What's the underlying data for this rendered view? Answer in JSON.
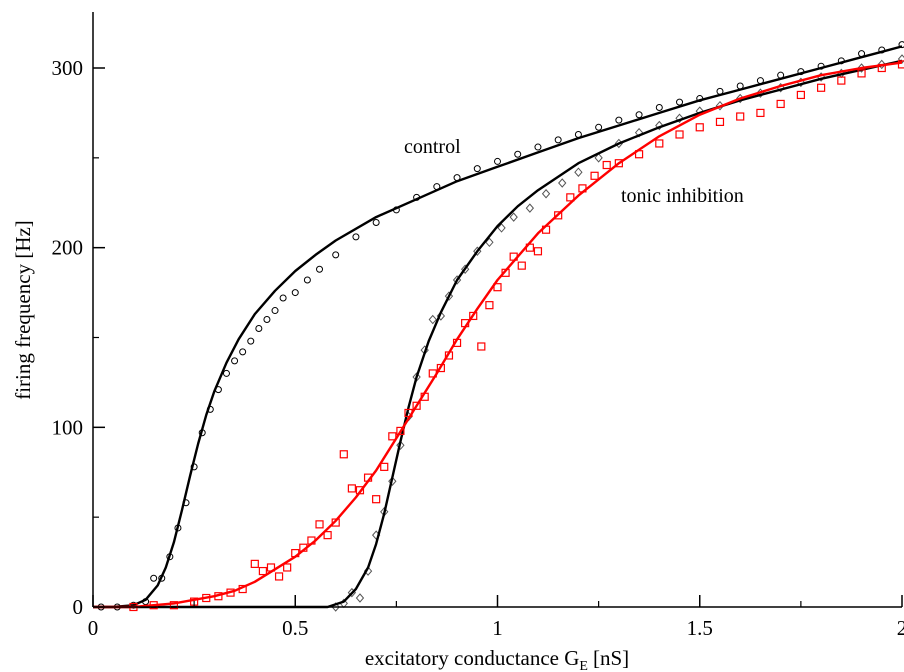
{
  "chart_data": {
    "type": "line",
    "title": "",
    "xlabel": "excitatory conductance G",
    "xlabel_sub": "E",
    "xlabel_unit": "[nS]",
    "ylabel": "firing frequency [Hz]",
    "xlim": [
      0,
      2
    ],
    "ylim": [
      0,
      330
    ],
    "xticks": [
      0,
      0.5,
      1,
      1.5,
      2
    ],
    "xtick_labels": [
      "0",
      "0.5",
      "1",
      "1.5",
      "2"
    ],
    "yticks": [
      0,
      100,
      200,
      300
    ],
    "ytick_labels": [
      "0",
      "100",
      "200",
      "300"
    ],
    "grid": false,
    "legend": "none",
    "annotations": [
      {
        "text": "control",
        "x": 0.76,
        "y": 252
      },
      {
        "text": "tonic inhibition",
        "x": 1.3,
        "y": 218
      }
    ],
    "series": [
      {
        "color": "#000000",
        "marker": "circle",
        "fit_x": [
          0,
          0.05,
          0.1,
          0.13,
          0.16,
          0.18,
          0.2,
          0.22,
          0.24,
          0.26,
          0.28,
          0.3,
          0.33,
          0.36,
          0.4,
          0.45,
          0.5,
          0.55,
          0.6,
          0.7,
          0.8,
          0.9,
          1.0,
          1.1,
          1.2,
          1.3,
          1.4,
          1.5,
          1.6,
          1.7,
          1.8,
          1.9,
          2.0
        ],
        "fit_y": [
          0,
          0,
          1,
          4,
          12,
          22,
          36,
          54,
          73,
          91,
          107,
          120,
          136,
          149,
          163,
          176,
          187,
          196,
          204,
          217,
          227,
          237,
          245,
          253,
          261,
          268,
          275,
          282,
          288,
          294,
          300,
          306,
          312
        ],
        "points_x": [
          0.02,
          0.06,
          0.1,
          0.13,
          0.15,
          0.17,
          0.19,
          0.21,
          0.23,
          0.25,
          0.27,
          0.29,
          0.31,
          0.33,
          0.35,
          0.37,
          0.39,
          0.41,
          0.43,
          0.45,
          0.47,
          0.5,
          0.53,
          0.56,
          0.6,
          0.65,
          0.7,
          0.75,
          0.8,
          0.85,
          0.9,
          0.95,
          1.0,
          1.05,
          1.1,
          1.15,
          1.2,
          1.25,
          1.3,
          1.35,
          1.4,
          1.45,
          1.5,
          1.55,
          1.6,
          1.65,
          1.7,
          1.75,
          1.8,
          1.85,
          1.9,
          1.95,
          2.0
        ],
        "points_y": [
          0,
          0,
          1,
          3,
          16,
          16,
          28,
          44,
          58,
          78,
          97,
          110,
          121,
          130,
          137,
          142,
          148,
          155,
          160,
          165,
          172,
          175,
          182,
          188,
          196,
          206,
          214,
          221,
          228,
          234,
          239,
          244,
          248,
          252,
          256,
          260,
          263,
          267,
          271,
          274,
          278,
          281,
          283,
          287,
          290,
          293,
          296,
          298,
          301,
          304,
          308,
          310,
          313
        ]
      },
      {
        "color": "#555555",
        "marker": "diamond",
        "fit_x": [
          0,
          0.5,
          0.58,
          0.62,
          0.65,
          0.68,
          0.7,
          0.72,
          0.74,
          0.76,
          0.78,
          0.8,
          0.83,
          0.86,
          0.9,
          0.95,
          1.0,
          1.05,
          1.1,
          1.2,
          1.3,
          1.4,
          1.5,
          1.6,
          1.7,
          1.8,
          1.9,
          2.0
        ],
        "fit_y": [
          0,
          0,
          0,
          3,
          10,
          22,
          35,
          52,
          72,
          92,
          111,
          128,
          148,
          164,
          182,
          198,
          212,
          223,
          232,
          247,
          258,
          267,
          275,
          282,
          288,
          294,
          299,
          304
        ],
        "points_x": [
          0.6,
          0.62,
          0.64,
          0.66,
          0.68,
          0.7,
          0.72,
          0.74,
          0.76,
          0.78,
          0.8,
          0.82,
          0.84,
          0.86,
          0.88,
          0.9,
          0.92,
          0.95,
          0.98,
          1.01,
          1.04,
          1.08,
          1.12,
          1.16,
          1.2,
          1.25,
          1.3,
          1.35,
          1.4,
          1.45,
          1.5,
          1.55,
          1.6,
          1.65,
          1.7,
          1.75,
          1.8,
          1.85,
          1.9,
          1.95,
          2.0
        ],
        "points_y": [
          0,
          2,
          8,
          5,
          20,
          40,
          53,
          70,
          90,
          106,
          128,
          143,
          160,
          162,
          173,
          182,
          188,
          198,
          203,
          211,
          217,
          222,
          230,
          236,
          242,
          250,
          258,
          264,
          268,
          272,
          276,
          279,
          283,
          286,
          289,
          292,
          295,
          297,
          300,
          302,
          305
        ]
      },
      {
        "color": "#ff0000",
        "marker": "square",
        "fit_x": [
          0,
          0.1,
          0.2,
          0.3,
          0.35,
          0.4,
          0.45,
          0.5,
          0.55,
          0.6,
          0.65,
          0.7,
          0.75,
          0.8,
          0.85,
          0.9,
          0.95,
          1.0,
          1.1,
          1.2,
          1.3,
          1.4,
          1.5,
          1.6,
          1.7,
          1.8,
          1.9,
          2.0
        ],
        "fit_y": [
          0,
          0,
          2,
          6,
          9,
          14,
          21,
          28,
          37,
          48,
          61,
          76,
          94,
          112,
          130,
          149,
          166,
          182,
          208,
          229,
          247,
          262,
          274,
          283,
          290,
          296,
          300,
          303
        ],
        "points_x": [
          0.1,
          0.15,
          0.2,
          0.25,
          0.28,
          0.31,
          0.34,
          0.37,
          0.4,
          0.42,
          0.44,
          0.46,
          0.48,
          0.5,
          0.52,
          0.54,
          0.56,
          0.58,
          0.6,
          0.62,
          0.64,
          0.66,
          0.68,
          0.7,
          0.72,
          0.74,
          0.76,
          0.78,
          0.8,
          0.82,
          0.84,
          0.86,
          0.88,
          0.9,
          0.92,
          0.94,
          0.96,
          0.98,
          1.0,
          1.02,
          1.04,
          1.06,
          1.08,
          1.1,
          1.12,
          1.15,
          1.18,
          1.21,
          1.24,
          1.27,
          1.3,
          1.35,
          1.4,
          1.45,
          1.5,
          1.55,
          1.6,
          1.65,
          1.7,
          1.75,
          1.8,
          1.85,
          1.9,
          1.95,
          2.0
        ],
        "points_y": [
          0,
          1,
          1,
          3,
          5,
          6,
          8,
          10,
          24,
          20,
          22,
          17,
          22,
          30,
          33,
          37,
          46,
          40,
          47,
          85,
          66,
          65,
          72,
          60,
          78,
          95,
          98,
          108,
          112,
          117,
          130,
          133,
          140,
          147,
          158,
          162,
          145,
          168,
          178,
          186,
          195,
          190,
          200,
          198,
          210,
          218,
          228,
          233,
          240,
          246,
          247,
          252,
          258,
          263,
          267,
          270,
          273,
          275,
          280,
          285,
          289,
          293,
          297,
          300,
          302
        ]
      }
    ]
  }
}
